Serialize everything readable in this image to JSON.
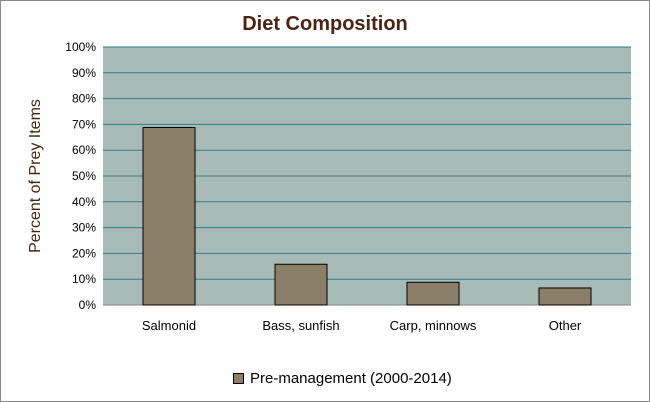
{
  "chart_data": {
    "type": "bar",
    "title": "Diet Composition",
    "xlabel": "",
    "ylabel": "Percent of Prey Items",
    "categories": [
      "Salmonid",
      "Bass, sunfish",
      "Carp, minnows",
      "Other"
    ],
    "series": [
      {
        "name": "Pre-management (2000-2014)",
        "values": [
          68.8,
          15.8,
          8.8,
          6.6
        ]
      }
    ],
    "ylim": [
      0,
      100
    ],
    "yticks": [
      "0%",
      "10%",
      "20%",
      "30%",
      "40%",
      "50%",
      "60%",
      "70%",
      "80%",
      "90%",
      "100%"
    ],
    "grid": true,
    "legend_position": "bottom",
    "colors": {
      "plot_background": "#a7bab5",
      "bar_fill": "#8c7f6a",
      "bar_border": "#000000",
      "gridline": "#2f7f90",
      "title_text": "#4a2512",
      "axis_label_text": "#4a2512"
    }
  }
}
